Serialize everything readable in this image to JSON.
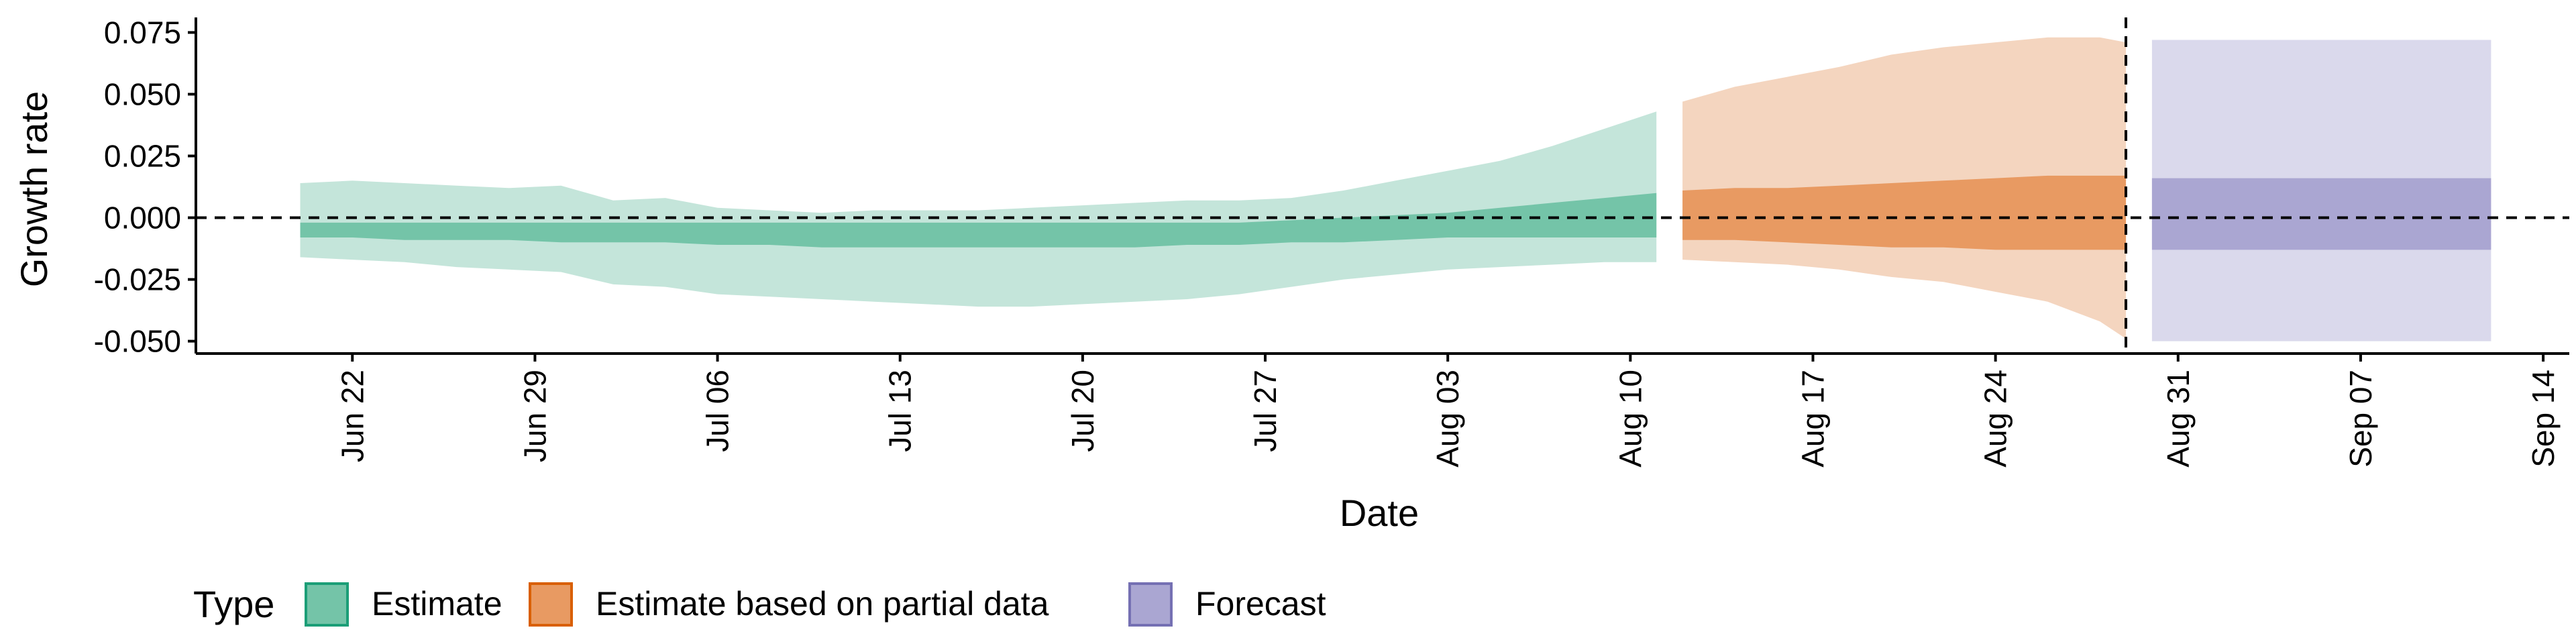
{
  "chart_data": {
    "type": "area",
    "title": "",
    "xlabel": "Date",
    "ylabel": "Growth rate",
    "x_range": [
      "2020-06-16",
      "2020-09-15"
    ],
    "ylim": [
      -0.055,
      0.08
    ],
    "y_ticks": [
      {
        "value": -0.05,
        "label": "-0.050"
      },
      {
        "value": -0.025,
        "label": "-0.025"
      },
      {
        "value": 0.0,
        "label": "0.000"
      },
      {
        "value": 0.025,
        "label": "0.025"
      },
      {
        "value": 0.05,
        "label": "0.050"
      },
      {
        "value": 0.075,
        "label": "0.075"
      }
    ],
    "x_ticks": [
      {
        "date": "2020-06-22",
        "label": "Jun 22"
      },
      {
        "date": "2020-06-29",
        "label": "Jun 29"
      },
      {
        "date": "2020-07-06",
        "label": "Jul 06"
      },
      {
        "date": "2020-07-13",
        "label": "Jul 13"
      },
      {
        "date": "2020-07-20",
        "label": "Jul 20"
      },
      {
        "date": "2020-07-27",
        "label": "Jul 27"
      },
      {
        "date": "2020-08-03",
        "label": "Aug 03"
      },
      {
        "date": "2020-08-10",
        "label": "Aug 10"
      },
      {
        "date": "2020-08-17",
        "label": "Aug 17"
      },
      {
        "date": "2020-08-24",
        "label": "Aug 24"
      },
      {
        "date": "2020-08-31",
        "label": "Aug 31"
      },
      {
        "date": "2020-09-07",
        "label": "Sep 07"
      },
      {
        "date": "2020-09-14",
        "label": "Sep 14"
      }
    ],
    "reference_lines": {
      "horizontal_y": 0.0,
      "vertical_date": "2020-08-29",
      "style": "dashed"
    },
    "grid": false,
    "legend": {
      "position": "bottom-left",
      "title": "Type",
      "entries": [
        {
          "label": "Estimate",
          "fill": "#74c4a8",
          "border": "#1b9e77"
        },
        {
          "label": "Estimate based on partial data",
          "fill": "#e89a62",
          "border": "#d95f02"
        },
        {
          "label": "Forecast",
          "fill": "#aaa6d2",
          "border": "#7570b3"
        }
      ]
    },
    "series": [
      {
        "name": "Estimate",
        "colors": {
          "outer": "#c4e5da",
          "inner": "#74c4a8"
        },
        "points": [
          [
            "2020-06-20",
            -0.016,
            0.014,
            -0.008,
            -0.002
          ],
          [
            "2020-06-22",
            -0.017,
            0.015,
            -0.008,
            -0.002
          ],
          [
            "2020-06-24",
            -0.018,
            0.014,
            -0.009,
            -0.002
          ],
          [
            "2020-06-26",
            -0.02,
            0.013,
            -0.009,
            -0.002
          ],
          [
            "2020-06-28",
            -0.021,
            0.012,
            -0.009,
            -0.002
          ],
          [
            "2020-06-30",
            -0.022,
            0.013,
            -0.01,
            -0.002
          ],
          [
            "2020-07-02",
            -0.027,
            0.007,
            -0.01,
            -0.002
          ],
          [
            "2020-07-04",
            -0.028,
            0.008,
            -0.01,
            -0.002
          ],
          [
            "2020-07-06",
            -0.031,
            0.004,
            -0.011,
            -0.002
          ],
          [
            "2020-07-08",
            -0.032,
            0.003,
            -0.011,
            -0.002
          ],
          [
            "2020-07-10",
            -0.033,
            0.002,
            -0.012,
            -0.002
          ],
          [
            "2020-07-12",
            -0.034,
            0.003,
            -0.012,
            -0.002
          ],
          [
            "2020-07-14",
            -0.035,
            0.003,
            -0.012,
            -0.002
          ],
          [
            "2020-07-16",
            -0.036,
            0.003,
            -0.012,
            -0.002
          ],
          [
            "2020-07-18",
            -0.036,
            0.004,
            -0.012,
            -0.002
          ],
          [
            "2020-07-20",
            -0.035,
            0.005,
            -0.012,
            -0.002
          ],
          [
            "2020-07-22",
            -0.034,
            0.006,
            -0.012,
            -0.002
          ],
          [
            "2020-07-24",
            -0.033,
            0.007,
            -0.011,
            -0.002
          ],
          [
            "2020-07-26",
            -0.031,
            0.007,
            -0.011,
            -0.002
          ],
          [
            "2020-07-28",
            -0.028,
            0.008,
            -0.01,
            -0.001
          ],
          [
            "2020-07-30",
            -0.025,
            0.011,
            -0.01,
            0.0
          ],
          [
            "2020-08-01",
            -0.023,
            0.015,
            -0.009,
            0.001
          ],
          [
            "2020-08-03",
            -0.021,
            0.019,
            -0.008,
            0.002
          ],
          [
            "2020-08-05",
            -0.02,
            0.023,
            -0.008,
            0.004
          ],
          [
            "2020-08-07",
            -0.019,
            0.029,
            -0.008,
            0.006
          ],
          [
            "2020-08-09",
            -0.018,
            0.036,
            -0.008,
            0.008
          ],
          [
            "2020-08-11",
            -0.018,
            0.043,
            -0.008,
            0.01
          ]
        ]
      },
      {
        "name": "Estimate based on partial data",
        "colors": {
          "outer": "#f4d5bf",
          "inner": "#e89a62"
        },
        "points": [
          [
            "2020-08-12",
            -0.017,
            0.047,
            -0.009,
            0.011
          ],
          [
            "2020-08-14",
            -0.018,
            0.053,
            -0.009,
            0.012
          ],
          [
            "2020-08-16",
            -0.019,
            0.057,
            -0.01,
            0.012
          ],
          [
            "2020-08-18",
            -0.021,
            0.061,
            -0.011,
            0.013
          ],
          [
            "2020-08-20",
            -0.024,
            0.066,
            -0.012,
            0.014
          ],
          [
            "2020-08-22",
            -0.026,
            0.069,
            -0.012,
            0.015
          ],
          [
            "2020-08-24",
            -0.03,
            0.071,
            -0.013,
            0.016
          ],
          [
            "2020-08-26",
            -0.034,
            0.073,
            -0.013,
            0.017
          ],
          [
            "2020-08-28",
            -0.042,
            0.073,
            -0.013,
            0.017
          ],
          [
            "2020-08-29",
            -0.049,
            0.071,
            -0.013,
            0.017
          ]
        ]
      },
      {
        "name": "Forecast",
        "colors": {
          "outer": "#dad9ec",
          "inner": "#aaa6d2"
        },
        "points": [
          [
            "2020-08-30",
            -0.05,
            0.072,
            -0.013,
            0.016
          ],
          [
            "2020-09-12",
            -0.05,
            0.072,
            -0.013,
            0.016
          ]
        ]
      }
    ]
  }
}
